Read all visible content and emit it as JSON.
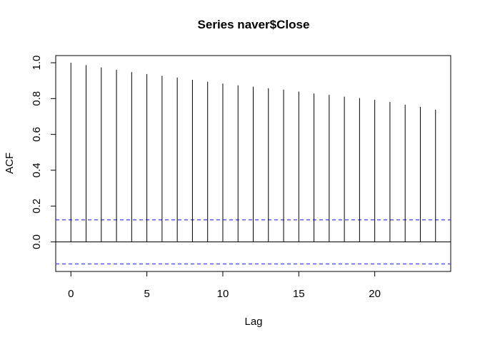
{
  "chart_data": {
    "type": "bar",
    "title": "Series  naver$Close",
    "xlabel": "Lag",
    "ylabel": "ACF",
    "x": [
      0,
      1,
      2,
      3,
      4,
      5,
      6,
      7,
      8,
      9,
      10,
      11,
      12,
      13,
      14,
      15,
      16,
      17,
      18,
      19,
      20,
      21,
      22,
      23,
      24
    ],
    "values": [
      1.0,
      0.987,
      0.974,
      0.961,
      0.948,
      0.937,
      0.927,
      0.917,
      0.905,
      0.894,
      0.884,
      0.874,
      0.866,
      0.858,
      0.85,
      0.839,
      0.828,
      0.821,
      0.811,
      0.803,
      0.793,
      0.781,
      0.766,
      0.754,
      0.738
    ],
    "confidence_bound": 0.123,
    "xlim": [
      -1,
      25
    ],
    "ylim": [
      -0.165,
      1.04
    ],
    "x_ticks": [
      0,
      5,
      10,
      15,
      20
    ],
    "x_tick_labels": [
      "0",
      "5",
      "10",
      "15",
      "20"
    ],
    "y_ticks": [
      0.0,
      0.2,
      0.4,
      0.6,
      0.8,
      1.0
    ],
    "y_tick_labels": [
      "0.0",
      "0.2",
      "0.4",
      "0.6",
      "0.8",
      "1.0"
    ],
    "grid": false,
    "colors": {
      "lag_lines": "#000000",
      "zero_line": "#000000",
      "confidence_lines": "#4a4af0"
    }
  }
}
